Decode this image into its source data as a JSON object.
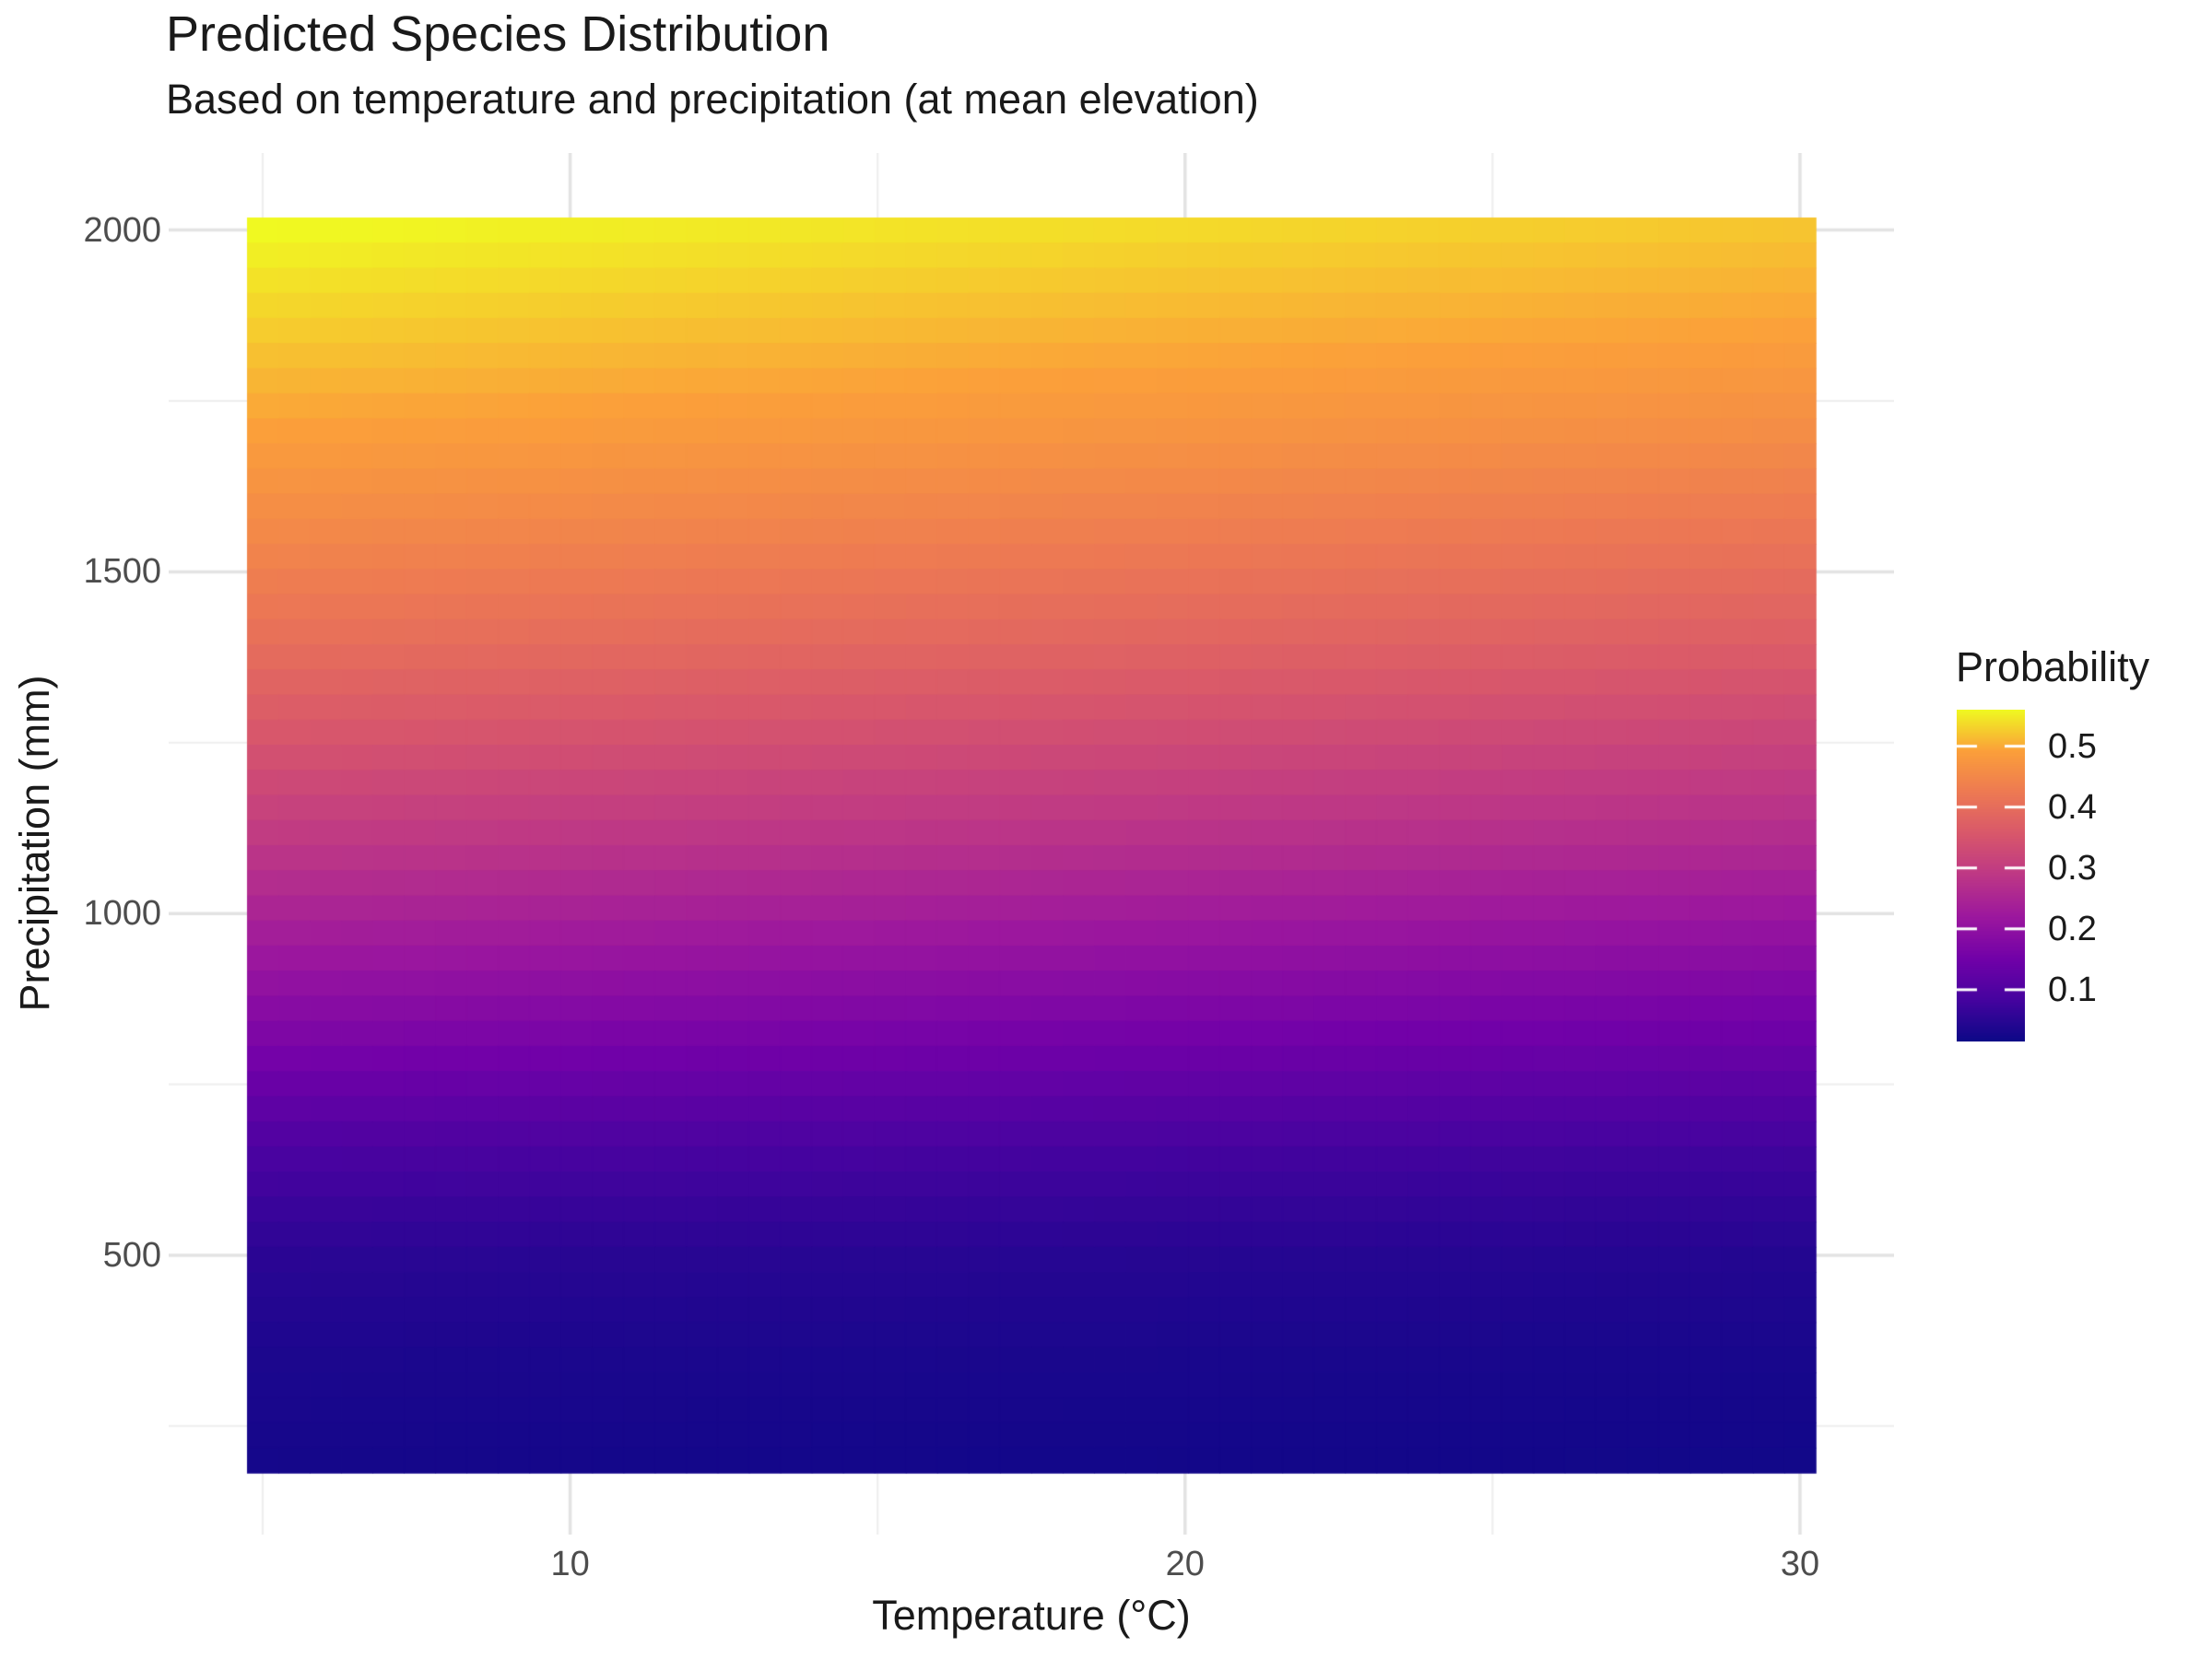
{
  "chart_data": {
    "type": "heatmap",
    "title": "Predicted Species Distribution",
    "subtitle": "Based on temperature and precipitation (at mean elevation)",
    "xlabel": "Temperature (°C)",
    "ylabel": "Precipitation (mm)",
    "x_axis": {
      "data_range": [
        5,
        30
      ],
      "ticks": [
        {
          "value": 10,
          "label": "10"
        },
        {
          "value": 20,
          "label": "20"
        },
        {
          "value": 30,
          "label": "30"
        }
      ],
      "minor_ticks": [
        5,
        15,
        25
      ]
    },
    "y_axis": {
      "data_range": [
        200,
        2000
      ],
      "ticks": [
        {
          "value": 2000,
          "label": "2000"
        },
        {
          "value": 1500,
          "label": "1500"
        },
        {
          "value": 1000,
          "label": "1000"
        },
        {
          "value": 500,
          "label": "500"
        }
      ],
      "minor_ticks": [
        250,
        750,
        1250,
        1750
      ]
    },
    "legend": {
      "title": "Probability",
      "position": "right",
      "range": [
        0.015,
        0.56
      ],
      "ticks": [
        {
          "value": 0.5,
          "label": "0.5"
        },
        {
          "value": 0.4,
          "label": "0.4"
        },
        {
          "value": 0.3,
          "label": "0.3"
        },
        {
          "value": 0.2,
          "label": "0.2"
        },
        {
          "value": 0.1,
          "label": "0.1"
        }
      ]
    },
    "colormap": {
      "name": "plasma",
      "stops": [
        [
          0.0,
          "#0d0887"
        ],
        [
          0.125,
          "#46039f"
        ],
        [
          0.25,
          "#7201a8"
        ],
        [
          0.375,
          "#9c179e"
        ],
        [
          0.5,
          "#bd3786"
        ],
        [
          0.625,
          "#d8576b"
        ],
        [
          0.75,
          "#ed7953"
        ],
        [
          0.875,
          "#fb9f3a"
        ],
        [
          1.0,
          "#f0f921"
        ]
      ]
    },
    "resolution": {
      "n_temp": 50,
      "n_precip": 50
    },
    "grid": {
      "temperatures": [
        5,
        10,
        15,
        20,
        25,
        30
      ],
      "precipitations": [
        200,
        350,
        500,
        650,
        800,
        950,
        1100,
        1250,
        1400,
        1550,
        1700,
        1850,
        2000
      ],
      "probabilities": [
        [
          0.025,
          0.024,
          0.023,
          0.022,
          0.022,
          0.021
        ],
        [
          0.033,
          0.032,
          0.031,
          0.03,
          0.029,
          0.028
        ],
        [
          0.05,
          0.048,
          0.047,
          0.045,
          0.044,
          0.042
        ],
        [
          0.09,
          0.087,
          0.084,
          0.081,
          0.078,
          0.075
        ],
        [
          0.16,
          0.155,
          0.15,
          0.145,
          0.14,
          0.135
        ],
        [
          0.225,
          0.219,
          0.213,
          0.207,
          0.201,
          0.195
        ],
        [
          0.29,
          0.284,
          0.278,
          0.272,
          0.266,
          0.26
        ],
        [
          0.35,
          0.343,
          0.336,
          0.329,
          0.322,
          0.315
        ],
        [
          0.405,
          0.398,
          0.391,
          0.384,
          0.377,
          0.37
        ],
        [
          0.45,
          0.443,
          0.436,
          0.429,
          0.422,
          0.415
        ],
        [
          0.49,
          0.484,
          0.477,
          0.471,
          0.464,
          0.458
        ],
        [
          0.525,
          0.518,
          0.511,
          0.504,
          0.498,
          0.492
        ],
        [
          0.56,
          0.552,
          0.544,
          0.536,
          0.528,
          0.52
        ]
      ]
    },
    "style": {
      "grid": "on",
      "panel_background": "#ffffff",
      "grid_major_color": "#e3e3e3",
      "grid_minor_color": "#eeeeee",
      "tick_label_color": "#4d4d4d",
      "text_color": "#1a1a1a"
    }
  }
}
